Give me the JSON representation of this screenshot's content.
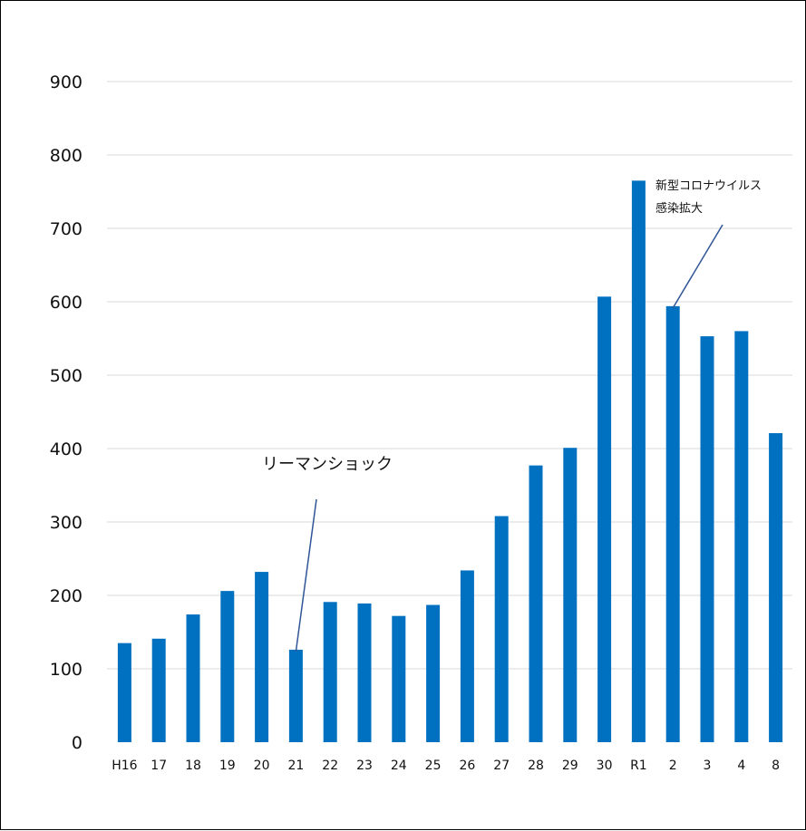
{
  "chart_data": {
    "type": "bar",
    "categories": [
      "H16",
      "17",
      "18",
      "19",
      "20",
      "21",
      "22",
      "23",
      "24",
      "25",
      "26",
      "27",
      "28",
      "29",
      "30",
      "R1",
      "2",
      "3",
      "4",
      "8"
    ],
    "values": [
      135,
      141,
      174,
      206,
      232,
      126,
      191,
      189,
      172,
      187,
      234,
      308,
      377,
      401,
      607,
      765,
      594,
      553,
      560,
      421
    ],
    "ylim": [
      0,
      900
    ],
    "yticks": [
      0,
      100,
      200,
      300,
      400,
      500,
      600,
      700,
      800,
      900
    ],
    "grid": true,
    "bar_color": "#0070C0",
    "annotations": [
      {
        "lines": [
          "リーマンショック"
        ],
        "target_category": "21"
      },
      {
        "lines": [
          "新型コロナウイルス",
          "感染拡大"
        ],
        "target_category": "2"
      }
    ]
  }
}
